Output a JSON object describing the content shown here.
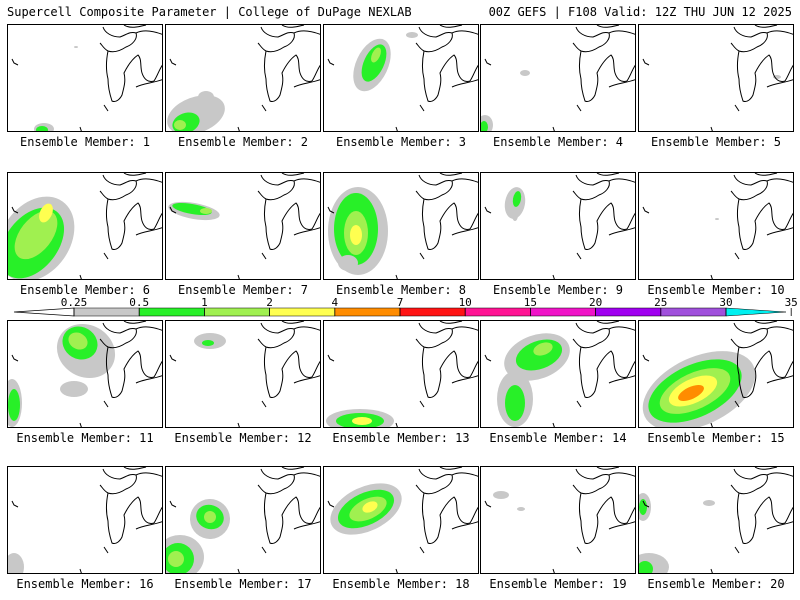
{
  "header": {
    "left": "Supercell Composite Parameter | College of DuPage NEXLAB",
    "right": "00Z GEFS | F108 Valid: 12Z THU JUN 12 2025"
  },
  "members": [
    {
      "label": "Ensemble Member: 1"
    },
    {
      "label": "Ensemble Member: 2"
    },
    {
      "label": "Ensemble Member: 3"
    },
    {
      "label": "Ensemble Member: 4"
    },
    {
      "label": "Ensemble Member: 5"
    },
    {
      "label": "Ensemble Member: 6"
    },
    {
      "label": "Ensemble Member: 7"
    },
    {
      "label": "Ensemble Member: 8"
    },
    {
      "label": "Ensemble Member: 9"
    },
    {
      "label": "Ensemble Member: 10"
    },
    {
      "label": "Ensemble Member: 11"
    },
    {
      "label": "Ensemble Member: 12"
    },
    {
      "label": "Ensemble Member: 13"
    },
    {
      "label": "Ensemble Member: 14"
    },
    {
      "label": "Ensemble Member: 15"
    },
    {
      "label": "Ensemble Member: 16"
    },
    {
      "label": "Ensemble Member: 17"
    },
    {
      "label": "Ensemble Member: 18"
    },
    {
      "label": "Ensemble Member: 19"
    },
    {
      "label": "Ensemble Member: 20"
    }
  ],
  "colorbar": {
    "ticks": [
      "0.25",
      "0.5",
      "1",
      "2",
      "4",
      "7",
      "10",
      "15",
      "20",
      "25",
      "30",
      "35"
    ],
    "colors": [
      "#c8c8c8",
      "#28f028",
      "#a0f050",
      "#ffff50",
      "#ff8c00",
      "#ff1414",
      "#ff1494",
      "#f014c8",
      "#a000f0",
      "#a050dc",
      "#00f0f0"
    ]
  },
  "field_colors": {
    "gray": "#c8c8c8",
    "green": "#28f028",
    "lightgreen": "#a0f050",
    "yellow": "#ffff50",
    "orange": "#ff8c00"
  }
}
